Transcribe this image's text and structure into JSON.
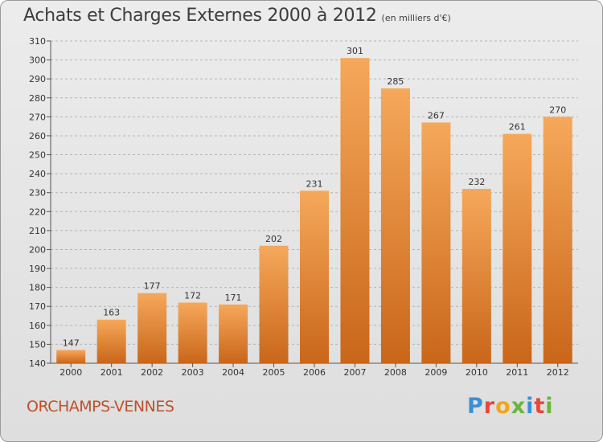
{
  "header": {
    "title": "Achats et Charges Externes 2000 à 2012",
    "subtitle": "(en milliers d'€)"
  },
  "footer": {
    "commune": "ORCHAMPS-VENNES",
    "logo_text": "Proxiti",
    "logo_colors": [
      "#3a8fd6",
      "#e8463a",
      "#f2a51a",
      "#6bb63a",
      "#3a8fd6",
      "#e8463a",
      "#6bb63a"
    ]
  },
  "colors": {
    "bar_light": "#f6a85a",
    "bar_dark": "#c9661a",
    "grid": "#b4b4b4",
    "text": "#333333"
  },
  "chart_data": {
    "type": "bar",
    "title": "Achats et Charges Externes 2000 à 2012",
    "subtitle": "(en milliers d'€)",
    "categories": [
      "2000",
      "2001",
      "2002",
      "2003",
      "2004",
      "2005",
      "2006",
      "2007",
      "2008",
      "2009",
      "2010",
      "2011",
      "2012"
    ],
    "values": [
      147,
      163,
      177,
      172,
      171,
      202,
      231,
      301,
      285,
      267,
      232,
      261,
      270
    ],
    "ylim": [
      140,
      310
    ],
    "ytick_step": 10,
    "grid": true,
    "xlabel": "",
    "ylabel": ""
  }
}
